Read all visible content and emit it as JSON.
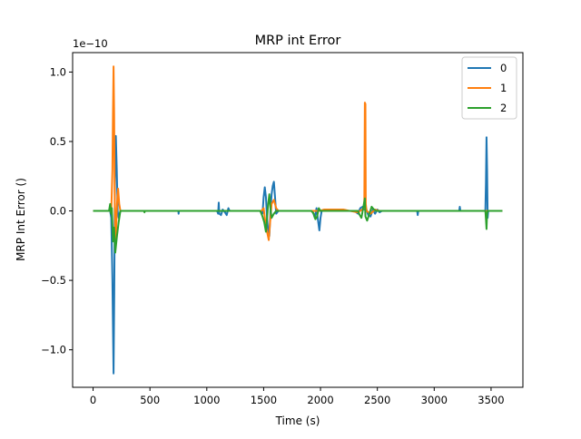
{
  "chart_data": {
    "type": "line",
    "title": "MRP int Error",
    "xlabel": "Time (s)",
    "ylabel": "MRP Int Error ()",
    "y_offset_label": "1e−10",
    "xlim": [
      -180,
      3780
    ],
    "ylim": [
      -1.27,
      1.14
    ],
    "xticks": [
      0,
      500,
      1000,
      1500,
      2000,
      2500,
      3000,
      3500
    ],
    "xtick_labels": [
      "0",
      "500",
      "1000",
      "1500",
      "2000",
      "2500",
      "3000",
      "3500"
    ],
    "yticks": [
      -1.0,
      -0.5,
      0.0,
      0.5,
      1.0
    ],
    "ytick_labels": [
      "−1.0",
      "−0.5",
      "0.0",
      "0.5",
      "1.0"
    ],
    "grid": false,
    "legend_position": "top-right",
    "series": [
      {
        "name": "0",
        "color": "#1f77b4",
        "points": [
          [
            0,
            0
          ],
          [
            150,
            0
          ],
          [
            160,
            -0.05
          ],
          [
            170,
            -0.5
          ],
          [
            180,
            -1.17
          ],
          [
            186,
            -0.6
          ],
          [
            192,
            0.2
          ],
          [
            200,
            0.54
          ],
          [
            208,
            0.3
          ],
          [
            216,
            0.0
          ],
          [
            225,
            -0.05
          ],
          [
            240,
            0
          ],
          [
            750,
            0
          ],
          [
            752,
            -0.02
          ],
          [
            755,
            0
          ],
          [
            1090,
            0
          ],
          [
            1100,
            -0.02
          ],
          [
            1105,
            0.06
          ],
          [
            1110,
            -0.02
          ],
          [
            1125,
            -0.03
          ],
          [
            1140,
            0.01
          ],
          [
            1160,
            -0.01
          ],
          [
            1175,
            -0.03
          ],
          [
            1190,
            0.02
          ],
          [
            1200,
            0
          ],
          [
            1480,
            0
          ],
          [
            1490,
            -0.02
          ],
          [
            1500,
            0.1
          ],
          [
            1510,
            0.17
          ],
          [
            1520,
            0.1
          ],
          [
            1530,
            -0.05
          ],
          [
            1540,
            -0.15
          ],
          [
            1550,
            -0.18
          ],
          [
            1560,
            0.0
          ],
          [
            1570,
            0.12
          ],
          [
            1580,
            0.18
          ],
          [
            1590,
            0.21
          ],
          [
            1600,
            0.1
          ],
          [
            1610,
            -0.02
          ],
          [
            1630,
            0
          ],
          [
            1930,
            0
          ],
          [
            1950,
            -0.05
          ],
          [
            1965,
            0.02
          ],
          [
            1980,
            -0.08
          ],
          [
            1990,
            -0.14
          ],
          [
            2000,
            -0.05
          ],
          [
            2010,
            0
          ],
          [
            2080,
            0
          ],
          [
            2300,
            0
          ],
          [
            2330,
            -0.02
          ],
          [
            2350,
            0.02
          ],
          [
            2370,
            0.03
          ],
          [
            2385,
            0.01
          ],
          [
            2400,
            0.02
          ],
          [
            2420,
            -0.03
          ],
          [
            2440,
            -0.04
          ],
          [
            2460,
            0.01
          ],
          [
            2480,
            -0.02
          ],
          [
            2500,
            0.01
          ],
          [
            2520,
            -0.01
          ],
          [
            2540,
            0
          ],
          [
            2850,
            0
          ],
          [
            2855,
            -0.03
          ],
          [
            2860,
            0
          ],
          [
            3220,
            0
          ],
          [
            3225,
            0.03
          ],
          [
            3230,
            0
          ],
          [
            3450,
            0
          ],
          [
            3455,
            0.2
          ],
          [
            3460,
            0.53
          ],
          [
            3465,
            0.3
          ],
          [
            3470,
            -0.05
          ],
          [
            3475,
            0
          ],
          [
            3600,
            0
          ]
        ]
      },
      {
        "name": "1",
        "color": "#ff7f0e",
        "points": [
          [
            0,
            0
          ],
          [
            160,
            0
          ],
          [
            170,
            0.3
          ],
          [
            175,
            0.7
          ],
          [
            180,
            1.04
          ],
          [
            185,
            0.7
          ],
          [
            190,
            0.1
          ],
          [
            195,
            -0.15
          ],
          [
            200,
            -0.2
          ],
          [
            210,
            0.05
          ],
          [
            220,
            0.16
          ],
          [
            230,
            0.05
          ],
          [
            240,
            0
          ],
          [
            1480,
            0
          ],
          [
            1500,
            0.02
          ],
          [
            1515,
            -0.08
          ],
          [
            1530,
            -0.15
          ],
          [
            1545,
            -0.21
          ],
          [
            1555,
            -0.1
          ],
          [
            1570,
            0.05
          ],
          [
            1590,
            0.08
          ],
          [
            1610,
            0.02
          ],
          [
            1630,
            0
          ],
          [
            1990,
            0
          ],
          [
            2030,
            0.01
          ],
          [
            2200,
            0.01
          ],
          [
            2260,
            0.0
          ],
          [
            2330,
            -0.01
          ],
          [
            2385,
            0.02
          ],
          [
            2390,
            0.78
          ],
          [
            2395,
            0.77
          ],
          [
            2398,
            0.05
          ],
          [
            2405,
            0
          ],
          [
            2440,
            -0.02
          ],
          [
            2480,
            0.01
          ],
          [
            2520,
            0
          ],
          [
            3600,
            0
          ]
        ]
      },
      {
        "name": "2",
        "color": "#2ca02c",
        "points": [
          [
            0,
            0
          ],
          [
            140,
            0
          ],
          [
            150,
            0.05
          ],
          [
            158,
            -0.02
          ],
          [
            165,
            0.02
          ],
          [
            175,
            -0.22
          ],
          [
            185,
            -0.12
          ],
          [
            195,
            -0.3
          ],
          [
            210,
            -0.18
          ],
          [
            225,
            -0.08
          ],
          [
            240,
            0
          ],
          [
            450,
            0
          ],
          [
            452,
            -0.01
          ],
          [
            455,
            0
          ],
          [
            1470,
            0
          ],
          [
            1490,
            -0.04
          ],
          [
            1505,
            -0.08
          ],
          [
            1520,
            -0.15
          ],
          [
            1530,
            -0.05
          ],
          [
            1540,
            0.05
          ],
          [
            1550,
            0.12
          ],
          [
            1560,
            0.02
          ],
          [
            1570,
            -0.05
          ],
          [
            1590,
            -0.02
          ],
          [
            1610,
            0
          ],
          [
            1920,
            0
          ],
          [
            1940,
            -0.02
          ],
          [
            1955,
            -0.06
          ],
          [
            1970,
            -0.04
          ],
          [
            1985,
            0.02
          ],
          [
            2000,
            0
          ],
          [
            2330,
            0
          ],
          [
            2345,
            -0.03
          ],
          [
            2360,
            -0.05
          ],
          [
            2375,
            0.02
          ],
          [
            2390,
            0.09
          ],
          [
            2395,
            -0.04
          ],
          [
            2410,
            -0.07
          ],
          [
            2430,
            -0.02
          ],
          [
            2450,
            0.03
          ],
          [
            2470,
            0.01
          ],
          [
            2490,
            0
          ],
          [
            3450,
            0
          ],
          [
            3455,
            -0.06
          ],
          [
            3460,
            -0.13
          ],
          [
            3465,
            -0.02
          ],
          [
            3470,
            0
          ],
          [
            3600,
            0
          ]
        ]
      }
    ]
  }
}
